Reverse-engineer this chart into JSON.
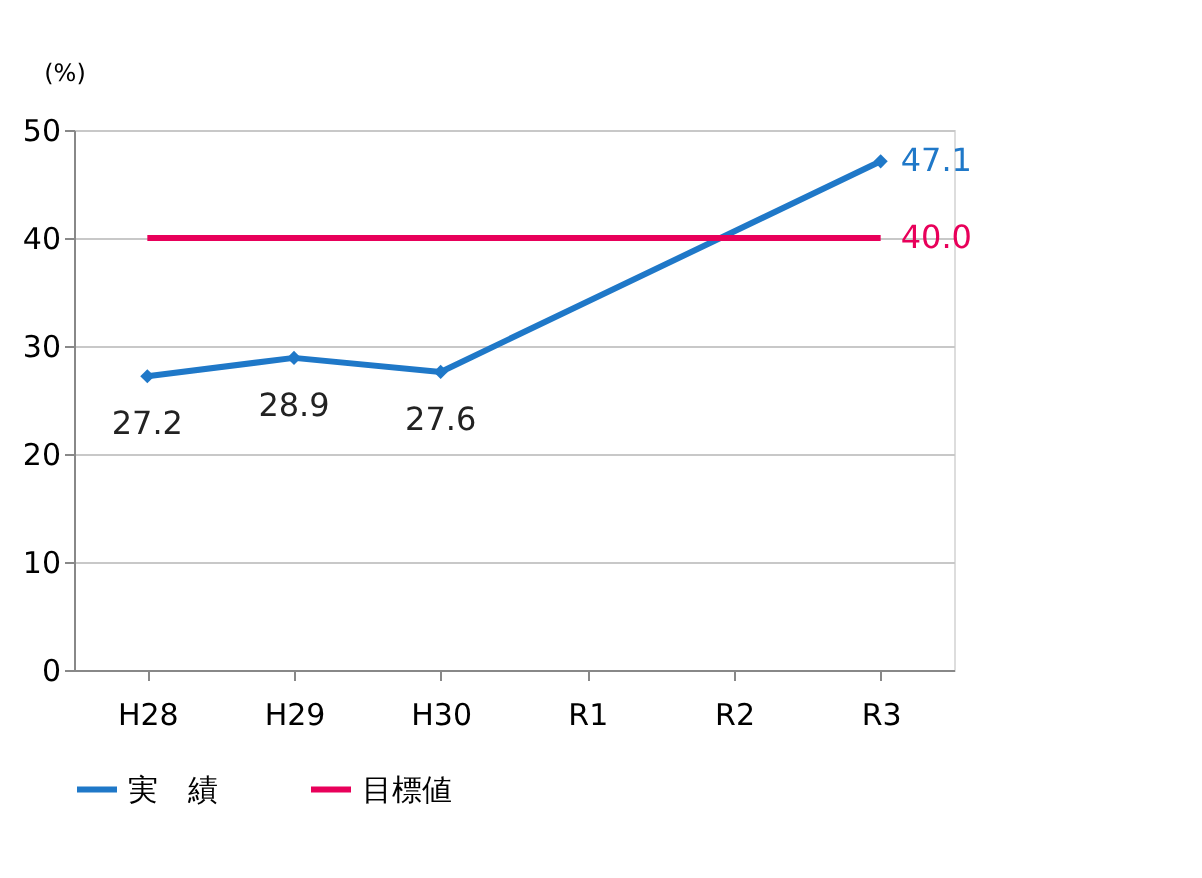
{
  "chart_data": {
    "type": "line",
    "ylabel": "(%)",
    "categories": [
      "H28",
      "H29",
      "H30",
      "R1",
      "R2",
      "R3"
    ],
    "ylim": [
      0,
      50
    ],
    "yticks": [
      0,
      10,
      20,
      30,
      40,
      50
    ],
    "grid": "y",
    "legend": "bottom",
    "series": [
      {
        "name": "実　績",
        "color": "#1f78c8",
        "x": [
          "H28",
          "H29",
          "H30",
          "R3"
        ],
        "values": [
          27.2,
          28.9,
          27.6,
          47.1
        ],
        "value_labels": [
          "27.2",
          "28.9",
          "27.6",
          "47.1"
        ],
        "marker": "diamond"
      },
      {
        "name": "目標値",
        "color": "#e8005a",
        "values": [
          40,
          40,
          40,
          40,
          40,
          40
        ],
        "value_labels": [
          null,
          null,
          null,
          null,
          null,
          "40.0"
        ],
        "marker": "none"
      }
    ]
  }
}
